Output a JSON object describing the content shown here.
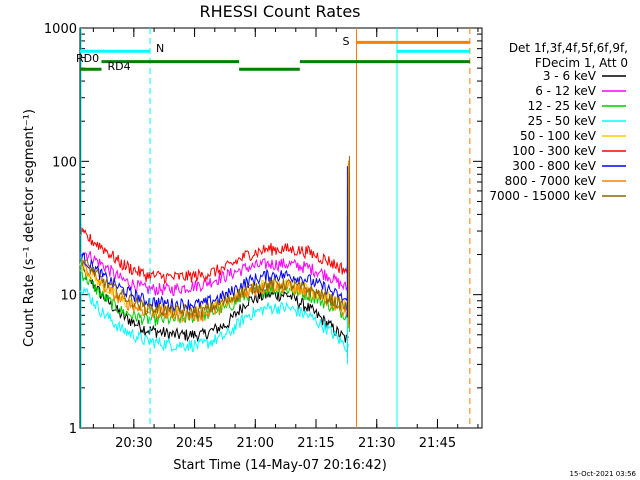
{
  "chart_data": {
    "type": "line",
    "title": "RHESSI Count Rates",
    "xlabel": "Start Time (14-May-07 20:16:42)",
    "ylabel": "Count Rate (s⁻¹ detector segment⁻¹)",
    "y_scale": "log",
    "xlim": [
      "20:16:42",
      "21:56:00"
    ],
    "ylim": [
      1,
      1000
    ],
    "x_ticks": [
      "20:30",
      "20:45",
      "21:00",
      "21:15",
      "21:30",
      "21:45"
    ],
    "y_ticks": [
      "1",
      "10",
      "100",
      "1000"
    ],
    "legend_position": "right",
    "legend_header": [
      "Det 1f,3f,4f,5f,6f,9f,",
      "FDecim 1, Att 0"
    ],
    "series": [
      {
        "name": "3 - 6 keV",
        "color": "#000000",
        "x": [
          "20:16:42",
          "20:22",
          "20:27",
          "20:33",
          "20:40",
          "20:47",
          "20:53",
          "20:58",
          "21:03",
          "21:08",
          "21:13",
          "21:18",
          "21:21",
          "21:23"
        ],
        "y": [
          16,
          10,
          7,
          5.5,
          5,
          5,
          6,
          9,
          10,
          10,
          8,
          6,
          5,
          4.5
        ]
      },
      {
        "name": "6 - 12 keV",
        "color": "#ff00ff",
        "x": [
          "20:16:42",
          "20:22",
          "20:27",
          "20:33",
          "20:40",
          "20:47",
          "20:53",
          "20:58",
          "21:03",
          "21:08",
          "21:13",
          "21:18",
          "21:21",
          "21:23"
        ],
        "y": [
          22,
          17,
          13,
          11,
          11,
          12,
          14,
          16,
          17,
          17,
          16,
          14,
          12,
          11
        ]
      },
      {
        "name": "12 - 25 keV",
        "color": "#00cc00",
        "x": [
          "20:16:42",
          "20:22",
          "20:27",
          "20:33",
          "20:40",
          "20:47",
          "20:53",
          "20:58",
          "21:03",
          "21:08",
          "21:13",
          "21:18",
          "21:21",
          "21:23"
        ],
        "y": [
          15,
          10,
          7.5,
          6.5,
          6.5,
          7,
          8,
          10,
          11,
          11,
          10,
          8.5,
          7.5,
          7
        ]
      },
      {
        "name": "25 - 50 keV",
        "color": "#00ffff",
        "x": [
          "20:16:42",
          "20:22",
          "20:27",
          "20:33",
          "20:40",
          "20:47",
          "20:53",
          "20:58",
          "21:03",
          "21:08",
          "21:13",
          "21:18",
          "21:21",
          "21:23"
        ],
        "y": [
          12,
          7.5,
          5.5,
          4.5,
          4.2,
          4.2,
          5,
          7,
          8,
          8,
          7,
          5.5,
          4.5,
          4
        ]
      },
      {
        "name": "50 - 100 keV",
        "color": "#ffcc00",
        "x": [
          "20:16:42",
          "20:22",
          "20:27",
          "20:33",
          "20:40",
          "20:47",
          "20:53",
          "20:58",
          "21:03",
          "21:08",
          "21:13",
          "21:18",
          "21:21",
          "21:23"
        ],
        "y": [
          17,
          12,
          9,
          8,
          7.5,
          8,
          9,
          11,
          12,
          12,
          11,
          9.5,
          8.5,
          8
        ]
      },
      {
        "name": "100 - 300 keV",
        "color": "#ff0000",
        "x": [
          "20:16:42",
          "20:22",
          "20:27",
          "20:33",
          "20:40",
          "20:47",
          "20:53",
          "20:58",
          "21:03",
          "21:08",
          "21:13",
          "21:18",
          "21:21",
          "21:23"
        ],
        "y": [
          29,
          23,
          17,
          14,
          13.5,
          14,
          16,
          20,
          22,
          22,
          21,
          18,
          16,
          15
        ]
      },
      {
        "name": "300 - 800 keV",
        "color": "#0000ff",
        "x": [
          "20:16:42",
          "20:22",
          "20:27",
          "20:33",
          "20:40",
          "20:47",
          "20:53",
          "20:58",
          "21:03",
          "21:08",
          "21:13",
          "21:18",
          "21:21",
          "21:23"
        ],
        "y": [
          20,
          14,
          11,
          9,
          8.5,
          8.5,
          10,
          12.5,
          14,
          14,
          13,
          11,
          9.5,
          9
        ]
      },
      {
        "name": "800 - 7000 keV",
        "color": "#ff8000",
        "x": [
          "20:16:42",
          "20:22",
          "20:27",
          "20:33",
          "20:40",
          "20:47",
          "20:53",
          "20:58",
          "21:03",
          "21:08",
          "21:13",
          "21:18",
          "21:21",
          "21:23"
        ],
        "y": [
          18,
          12,
          9,
          7.5,
          7,
          7,
          8.5,
          10.5,
          11.5,
          11.5,
          10.5,
          9,
          8,
          7.5
        ]
      },
      {
        "name": "7000 - 15000 keV",
        "color": "#886600",
        "x": [
          "20:16:42",
          "20:22",
          "20:27",
          "20:33",
          "20:40",
          "20:47",
          "20:53",
          "20:58",
          "21:03",
          "21:08",
          "21:13",
          "21:18",
          "21:21",
          "21:23"
        ],
        "y": [
          19,
          13,
          10,
          8,
          7.5,
          7.5,
          9,
          11,
          12,
          12,
          11,
          9.5,
          8.5,
          8
        ]
      }
    ],
    "spike": {
      "x": "21:23",
      "y_max": 110
    },
    "flags": [
      {
        "label": "N",
        "color": "#00ffff",
        "segments": [
          [
            "20:16:42",
            "20:34"
          ],
          [
            "21:35",
            "21:53"
          ]
        ],
        "y": 670
      },
      {
        "label": "S",
        "color": "#ff8000",
        "segments": [
          [
            "21:25",
            "21:53"
          ]
        ],
        "y": 780
      },
      {
        "label": "RD0",
        "color": "#008000",
        "segments": [
          [
            "20:16:42",
            "20:22"
          ]
        ],
        "y": 490
      },
      {
        "label": "RD4",
        "color": "#008000",
        "segments": [
          [
            "20:22",
            "20:56"
          ],
          [
            "21:11",
            "21:53"
          ]
        ],
        "y": 560
      },
      {
        "label": "",
        "color": "#008000",
        "segments": [
          [
            "20:56",
            "21:11"
          ]
        ],
        "y": 490
      }
    ],
    "vlines": [
      {
        "x": "20:34",
        "color": "#00ffff",
        "style": "dashed"
      },
      {
        "x": "21:25",
        "color": "#ff8000",
        "style": "solid"
      },
      {
        "x": "21:35",
        "color": "#00ffff",
        "style": "solid"
      },
      {
        "x": "21:53",
        "color": "#ff8000",
        "style": "dashed"
      }
    ]
  },
  "footer": {
    "timestamp": "15-Oct-2021 03:56"
  }
}
